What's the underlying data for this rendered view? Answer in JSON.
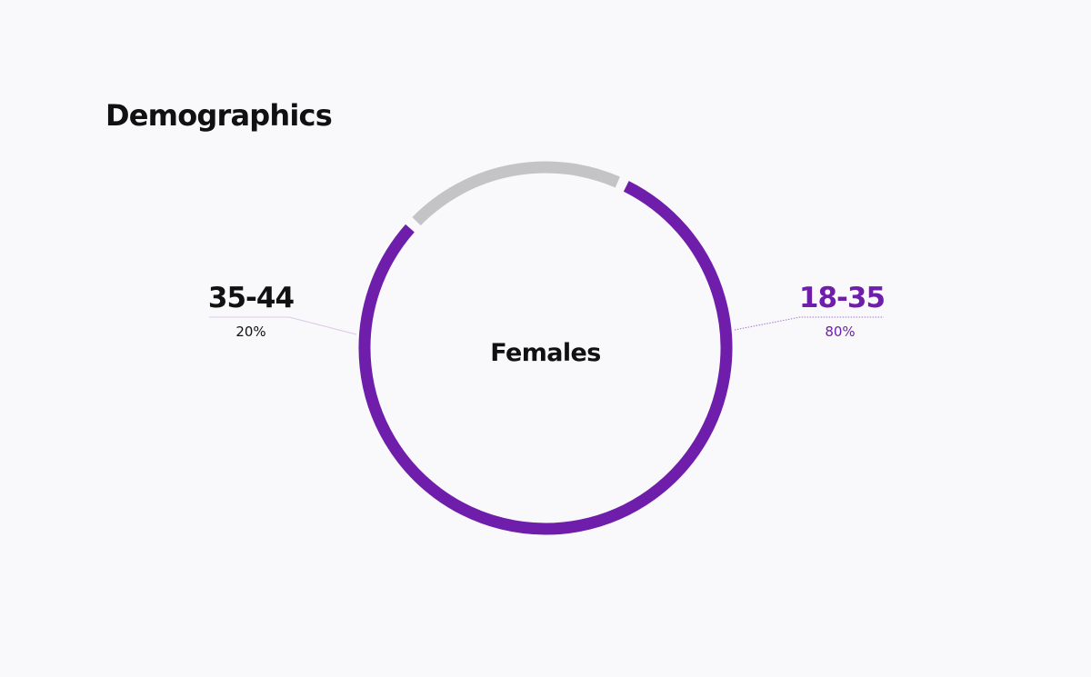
{
  "title": "Demographics",
  "chart_data": {
    "type": "pie",
    "center_label": "Females",
    "slices": [
      {
        "label": "18-35",
        "value": 80,
        "value_label": "80%",
        "color": "#6f1eab"
      },
      {
        "label": "35-44",
        "value": 20,
        "value_label": "20%",
        "color": "#c4c4c6"
      }
    ],
    "label_colors": {
      "18-35": "#6f1eab",
      "35-44": "#111111"
    }
  }
}
